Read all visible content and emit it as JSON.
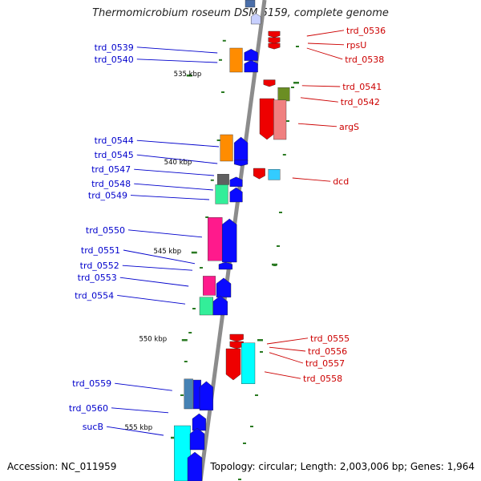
{
  "title": "Thermomicrobium roseum DSM 5159, complete genome",
  "footer": {
    "accession": "Accession: NC_011959",
    "summary": "Topology: circular; Length: 2,003,006 bp; Genes: 1,964"
  },
  "colors": {
    "backbone": "#8c8c8c",
    "left_label": "#0000cc",
    "right_label": "#cc0000",
    "tick": "#2a7a22"
  },
  "scale_labels": [
    "535 kbp",
    "540 kbp",
    "545 kbp",
    "550 kbp",
    "555 kbp"
  ],
  "left_labels": [
    "trd_0539",
    "trd_0540",
    "trd_0544",
    "trd_0545",
    "trd_0547",
    "trd_0548",
    "trd_0549",
    "trd_0550",
    "trd_0551",
    "trd_0552",
    "trd_0553",
    "trd_0554",
    "trd_0559",
    "trd_0560",
    "sucB"
  ],
  "right_labels": [
    "trd_0536",
    "rpsU",
    "trd_0538",
    "trd_0541",
    "trd_0542",
    "argS",
    "dcd",
    "trd_0555",
    "trd_0556",
    "trd_0557",
    "trd_0558"
  ]
}
